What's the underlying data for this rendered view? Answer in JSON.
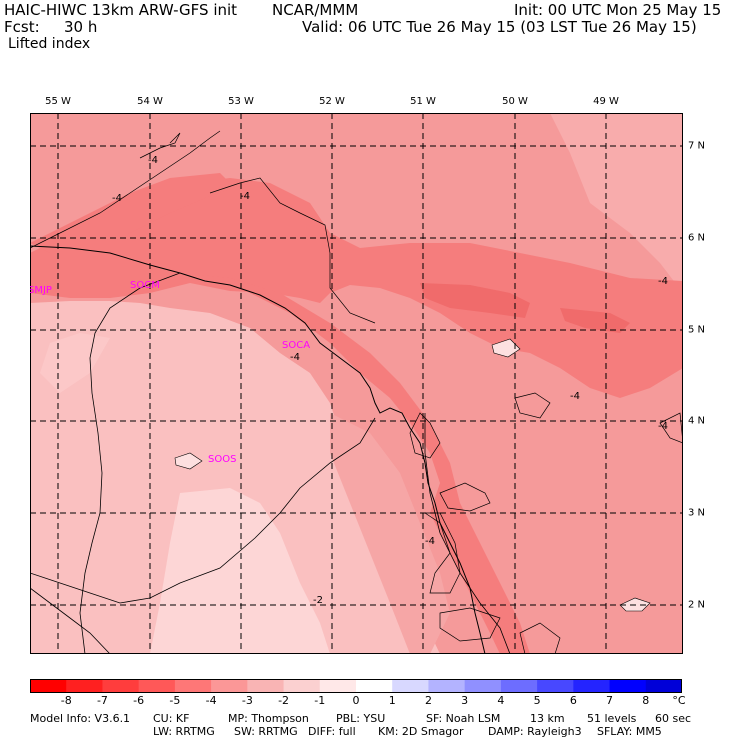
{
  "header": {
    "model": "HAIC-HIWC 13km ARW-GFS init",
    "org": "NCAR/MMM",
    "init": "Init: 00 UTC Mon 25 May 15",
    "fcst_label": "Fcst:",
    "fcst_value": "30 h",
    "valid": "Valid: 06 UTC Tue 26 May 15 (03 LST Tue 26 May 15)",
    "field": "Lifted index"
  },
  "map": {
    "lon_labels": [
      "55 W",
      "54 W",
      "53 W",
      "52 W",
      "51 W",
      "50 W",
      "49 W"
    ],
    "lat_labels": [
      "7 N",
      "6 N",
      "5 N",
      "4 N",
      "3 N",
      "2 N"
    ],
    "stations": [
      "SMJP",
      "SOCM",
      "SOCA",
      "SOOS"
    ],
    "contour_labels": [
      "-4",
      "-4",
      "-4",
      "-4",
      "-4",
      "-4",
      "-4",
      "-4",
      "-2"
    ],
    "colors": {
      "ocean": "#f59a9a",
      "coast_dark": "#f57d7d",
      "land_light": "#fac0c0",
      "land_lighter": "#fdd6d6",
      "station": "#ff00ff"
    }
  },
  "colorbar": {
    "labels": [
      "-8",
      "-7",
      "-6",
      "-5",
      "-4",
      "-3",
      "-2",
      "-1",
      "0",
      "1",
      "2",
      "3",
      "4",
      "5",
      "6",
      "7",
      "8"
    ],
    "unit": "°C",
    "colors": [
      "#ff0000",
      "#ff2020",
      "#ff3d3d",
      "#ff5858",
      "#fe7777",
      "#fb9797",
      "#f9b4b4",
      "#fbd0d0",
      "#ffe8e8",
      "#ffffff",
      "#d8d8ff",
      "#b3b3ff",
      "#9090ff",
      "#6d6dff",
      "#4848ff",
      "#2424ff",
      "#0000ff",
      "#0000d8"
    ]
  },
  "footer": {
    "line1": [
      "Model Info: V3.6.1",
      "CU: KF",
      "MP: Thompson",
      "PBL: YSU",
      "SF: Noah LSM",
      "13 km",
      "51 levels",
      "60 sec"
    ],
    "line2": [
      "LW: RRTMG",
      "SW: RRTMG",
      "DIFF: full",
      "KM: 2D Smagor",
      "DAMP: Rayleigh3",
      "SFLAY: MM5"
    ]
  }
}
